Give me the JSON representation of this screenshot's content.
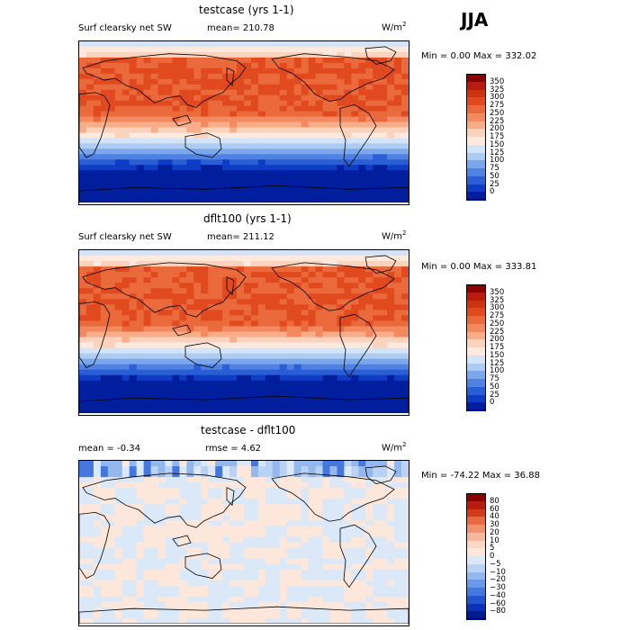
{
  "season": "JJA",
  "panels": [
    {
      "title": "testcase (yrs 1-1)",
      "variable": "Surf clearsky net SW",
      "stat1": "mean= 210.78",
      "stat2": "",
      "units": "W/m",
      "units_sup": "2",
      "minmax": "Min =    0.00 Max = 332.02",
      "levels": [
        "350",
        "325",
        "300",
        "275",
        "250",
        "225",
        "200",
        "175",
        "150",
        "125",
        "100",
        "75",
        "50",
        "25",
        "0"
      ],
      "colors": [
        "#8b0000",
        "#b71c0e",
        "#cc3311",
        "#e04a1e",
        "#eb6a3c",
        "#f2895f",
        "#f7ad8a",
        "#fbd2bb",
        "#fde9dd",
        "#d4e4f8",
        "#aecbf2",
        "#7ba8ec",
        "#4f82e3",
        "#2a5ed6",
        "#0f3cc4",
        "#001e9e"
      ]
    },
    {
      "title": "dflt100 (yrs 1-1)",
      "variable": "Surf clearsky net SW",
      "stat1": "mean= 211.12",
      "stat2": "",
      "units": "W/m",
      "units_sup": "2",
      "minmax": "Min =    0.00 Max = 333.81",
      "levels": [
        "350",
        "325",
        "300",
        "275",
        "250",
        "225",
        "200",
        "175",
        "150",
        "125",
        "100",
        "75",
        "50",
        "25",
        "0"
      ],
      "colors": [
        "#8b0000",
        "#b71c0e",
        "#cc3311",
        "#e04a1e",
        "#eb6a3c",
        "#f2895f",
        "#f7ad8a",
        "#fbd2bb",
        "#fde9dd",
        "#d4e4f8",
        "#aecbf2",
        "#7ba8ec",
        "#4f82e3",
        "#2a5ed6",
        "#0f3cc4",
        "#001e9e"
      ]
    },
    {
      "title": "testcase - dflt100",
      "variable": "",
      "stat1": "mean =   -0.34",
      "stat2": "rmse =   4.62",
      "units": "W/m",
      "units_sup": "2",
      "minmax": "Min = -74.22 Max =  36.88",
      "levels": [
        "80",
        "60",
        "40",
        "30",
        "20",
        "10",
        "5",
        "0",
        "−5",
        "−10",
        "−20",
        "−30",
        "−40",
        "−60",
        "−80"
      ],
      "colors": [
        "#8b0000",
        "#b71c0e",
        "#d23a1b",
        "#e66a43",
        "#f1926f",
        "#f7b79c",
        "#fbd8c6",
        "#fde7db",
        "#dbe8f8",
        "#b9d2f3",
        "#93b8ee",
        "#6a98e8",
        "#4478de",
        "#2254cf",
        "#0a32b8",
        "#001a8f"
      ]
    }
  ]
}
